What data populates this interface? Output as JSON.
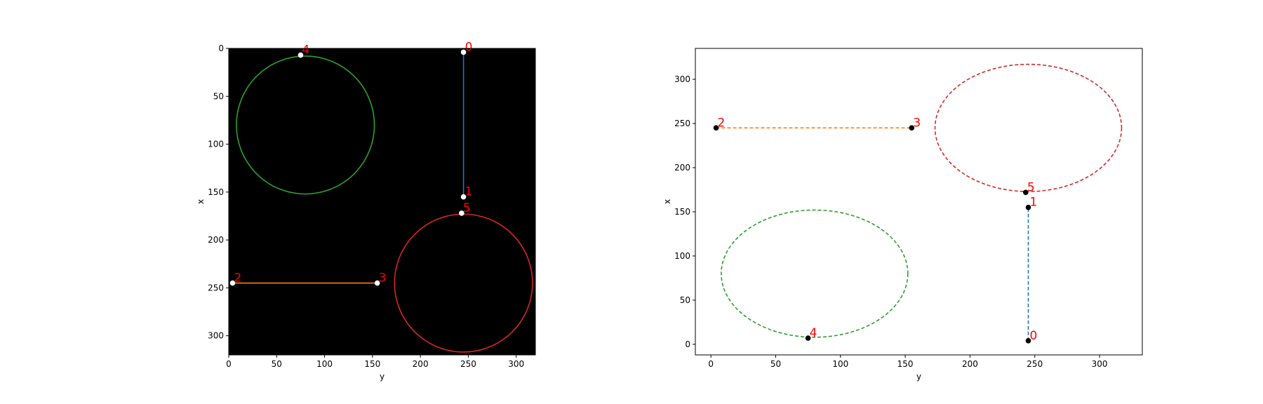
{
  "chart_data": [
    {
      "type": "scatter",
      "panel": "image",
      "background": "#000000",
      "xlabel": "y",
      "ylabel": "x",
      "xlim": [
        0,
        320
      ],
      "ylim": [
        320,
        0
      ],
      "xticks": [
        0,
        50,
        100,
        150,
        200,
        250,
        300
      ],
      "yticks": [
        0,
        50,
        100,
        150,
        200,
        250,
        300
      ],
      "point_color": "#ffffff",
      "label_color": "#ff0000",
      "points": [
        {
          "label": "0",
          "x": 245,
          "y": 4
        },
        {
          "label": "1",
          "x": 245,
          "y": 155
        },
        {
          "label": "2",
          "x": 4,
          "y": 245
        },
        {
          "label": "3",
          "x": 155,
          "y": 245
        },
        {
          "label": "4",
          "x": 75,
          "y": 7
        },
        {
          "label": "5",
          "x": 243,
          "y": 172
        }
      ],
      "segments": [
        {
          "from": [
            245,
            4
          ],
          "to": [
            245,
            155
          ],
          "color": "#1f77b4"
        },
        {
          "from": [
            4,
            245
          ],
          "to": [
            155,
            245
          ],
          "color": "#ff7f0e"
        }
      ],
      "circles": [
        {
          "cx": 80,
          "cy": 80,
          "r": 72,
          "color": "#2ca02c"
        },
        {
          "cx": 245,
          "cy": 245,
          "r": 72,
          "color": "#d62728"
        }
      ]
    },
    {
      "type": "scatter",
      "panel": "plot",
      "background": "#ffffff",
      "xlabel": "y",
      "ylabel": "x",
      "xlim": [
        -12,
        333
      ],
      "ylim": [
        -12,
        335
      ],
      "xticks": [
        0,
        50,
        100,
        150,
        200,
        250,
        300
      ],
      "yticks": [
        0,
        50,
        100,
        150,
        200,
        250,
        300
      ],
      "point_color": "#000000",
      "label_color": "#ff0000",
      "points": [
        {
          "label": "0",
          "x": 245,
          "y": 4
        },
        {
          "label": "1",
          "x": 245,
          "y": 155
        },
        {
          "label": "2",
          "x": 4,
          "y": 245
        },
        {
          "label": "3",
          "x": 155,
          "y": 245
        },
        {
          "label": "4",
          "x": 75,
          "y": 7
        },
        {
          "label": "5",
          "x": 243,
          "y": 172
        }
      ],
      "segments": [
        {
          "from": [
            245,
            4
          ],
          "to": [
            245,
            155
          ],
          "color": "#1f77b4",
          "dashed": true
        },
        {
          "from": [
            4,
            245
          ],
          "to": [
            155,
            245
          ],
          "color": "#ff7f0e",
          "dashed": true
        }
      ],
      "circles": [
        {
          "cx": 80,
          "cy": 80,
          "r": 72,
          "color": "#2ca02c",
          "dashed": true
        },
        {
          "cx": 245,
          "cy": 245,
          "r": 72,
          "color": "#d62728",
          "dashed": true
        }
      ]
    }
  ]
}
